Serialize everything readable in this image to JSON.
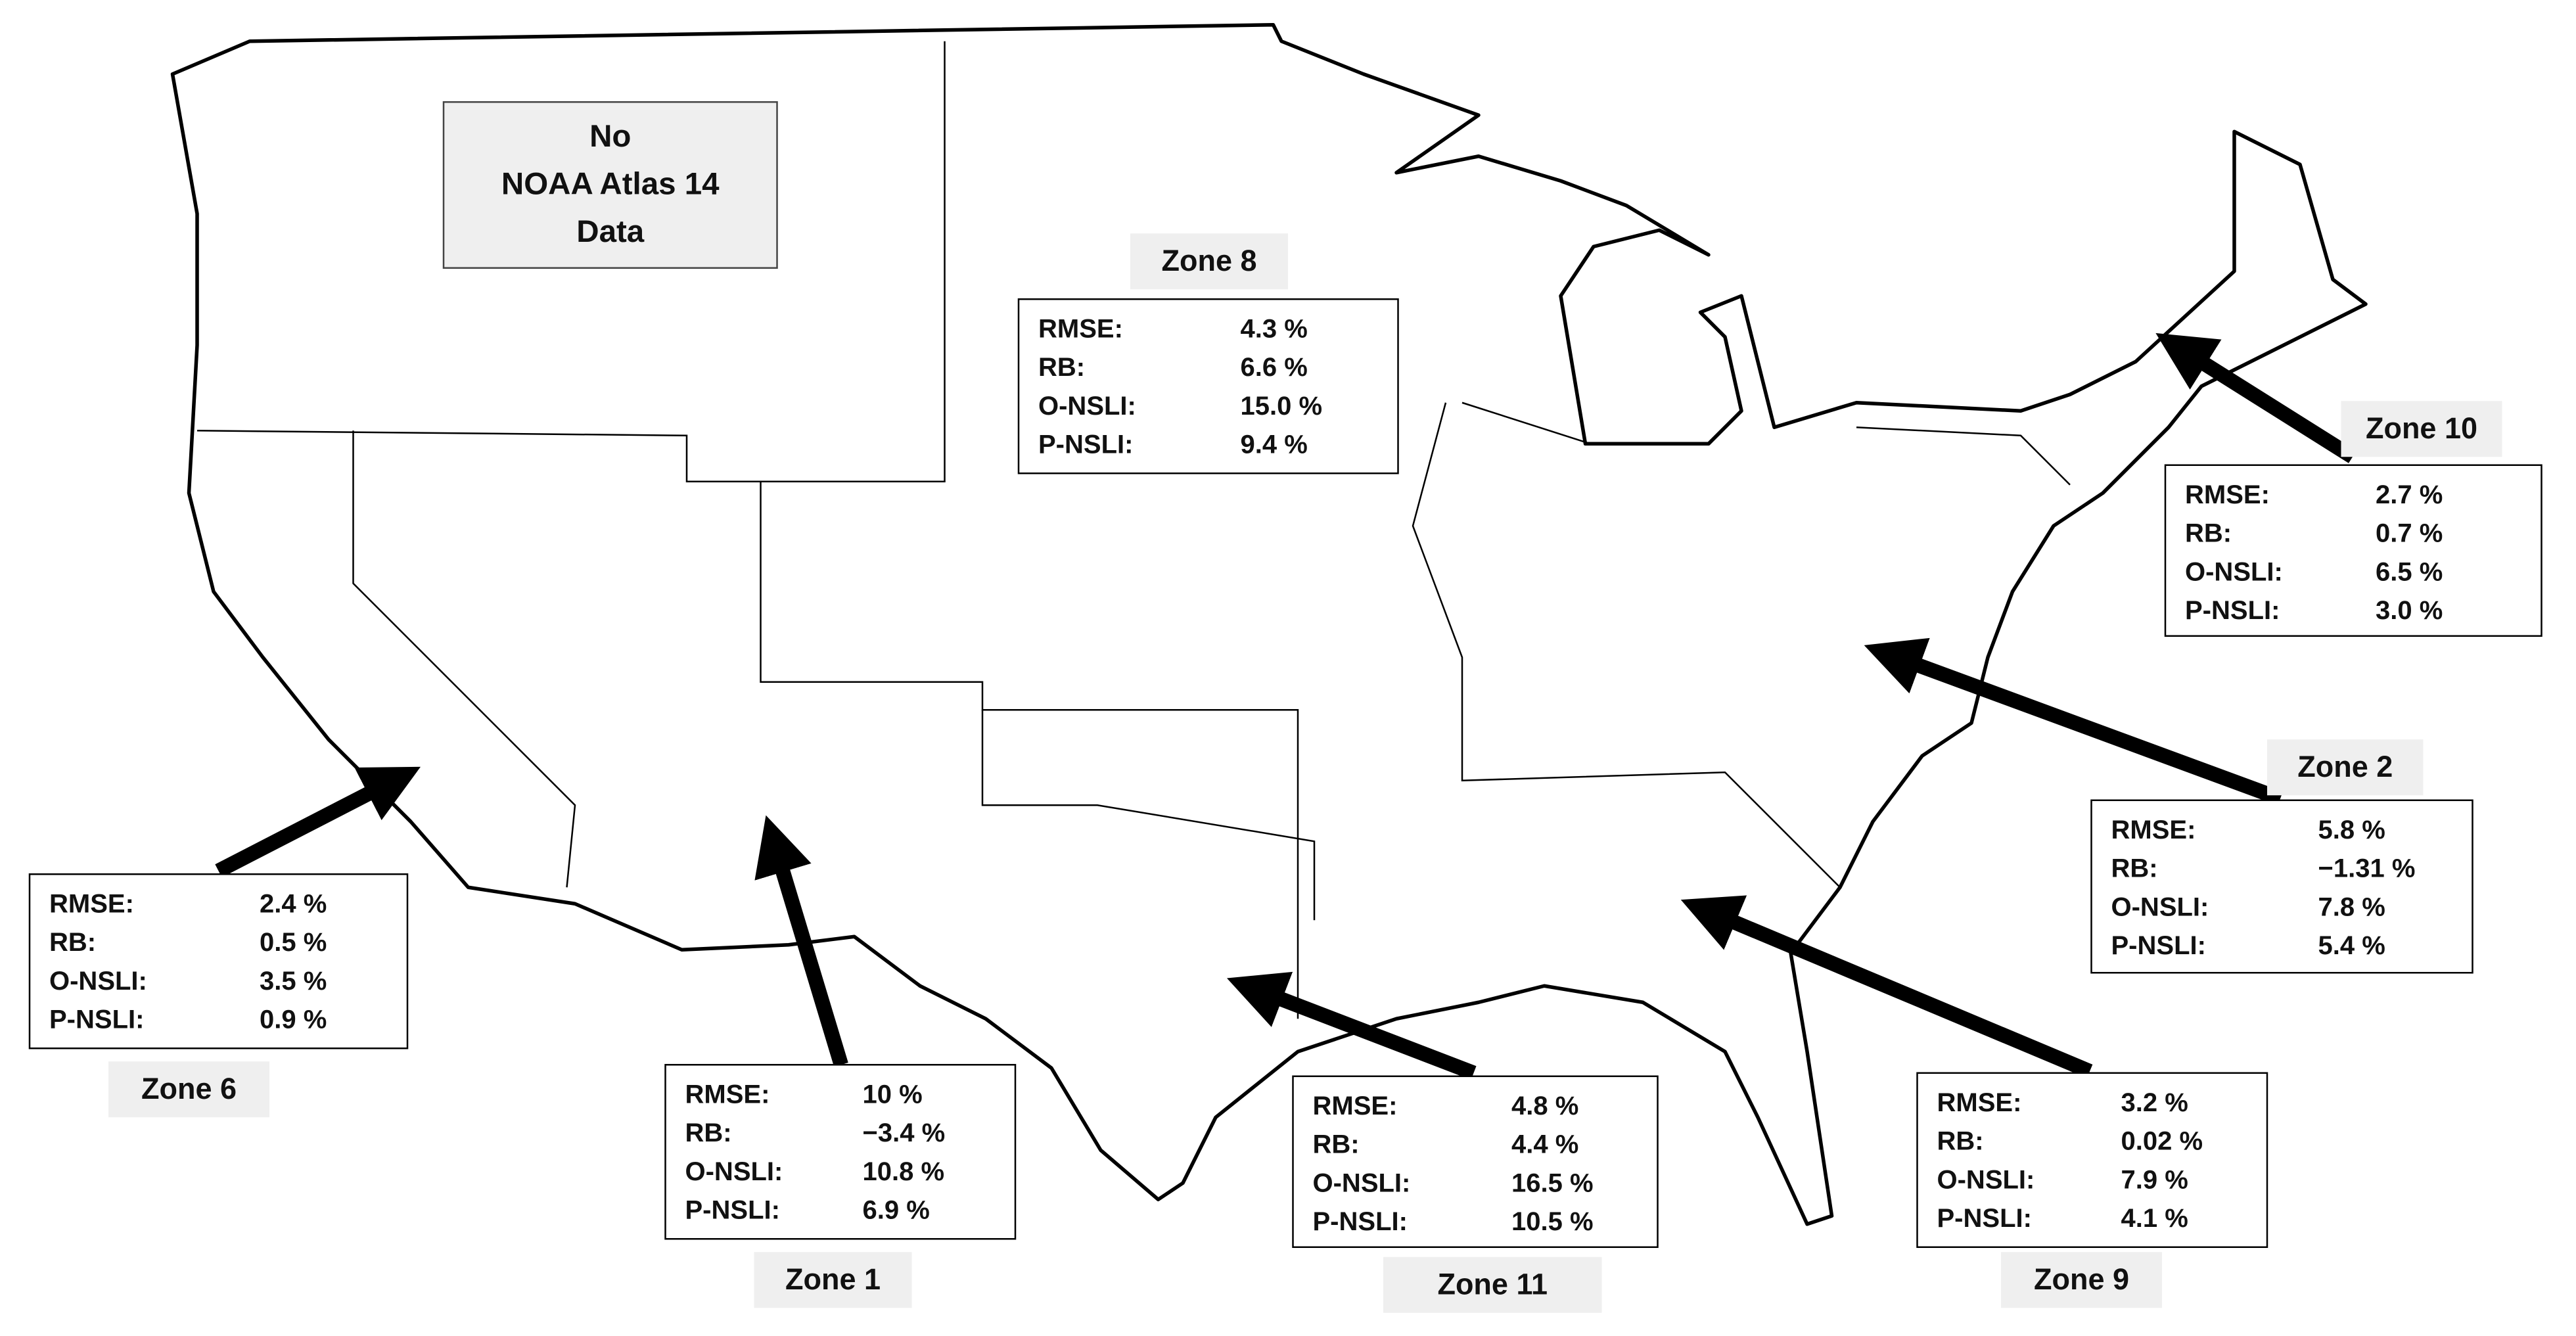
{
  "no_data_label": [
    "No",
    "NOAA Atlas 14",
    "Data"
  ],
  "zones": [
    {
      "name": "Zone 8",
      "rows": [
        {
          "label": "RMSE:",
          "value": "4.3 %"
        },
        {
          "label": "RB:",
          "value": "6.6 %"
        },
        {
          "label": "O-NSLI:",
          "value": "15.0 %"
        },
        {
          "label": "P-NSLI:",
          "value": "9.4 %"
        }
      ]
    },
    {
      "name": "Zone 10",
      "rows": [
        {
          "label": "RMSE:",
          "value": "2.7 %"
        },
        {
          "label": "RB:",
          "value": "0.7 %"
        },
        {
          "label": "O-NSLI:",
          "value": "6.5 %"
        },
        {
          "label": "P-NSLI:",
          "value": "3.0 %"
        }
      ]
    },
    {
      "name": "Zone 2",
      "rows": [
        {
          "label": "RMSE:",
          "value": "5.8 %"
        },
        {
          "label": "RB:",
          "value": "−1.31 %"
        },
        {
          "label": "O-NSLI:",
          "value": "7.8 %"
        },
        {
          "label": "P-NSLI:",
          "value": "5.4 %"
        }
      ]
    },
    {
      "name": "Zone 6",
      "rows": [
        {
          "label": "RMSE:",
          "value": "2.4 %"
        },
        {
          "label": "RB:",
          "value": "0.5 %"
        },
        {
          "label": "O-NSLI:",
          "value": "3.5 %"
        },
        {
          "label": "P-NSLI:",
          "value": "0.9 %"
        }
      ]
    },
    {
      "name": "Zone 1",
      "rows": [
        {
          "label": "RMSE:",
          "value": "10 %"
        },
        {
          "label": "RB:",
          "value": "−3.4 %"
        },
        {
          "label": "O-NSLI:",
          "value": "10.8 %"
        },
        {
          "label": "P-NSLI:",
          "value": "6.9 %"
        }
      ]
    },
    {
      "name": "Zone 11",
      "rows": [
        {
          "label": "RMSE:",
          "value": "4.8 %"
        },
        {
          "label": "RB:",
          "value": "4.4 %"
        },
        {
          "label": "O-NSLI:",
          "value": "16.5 %"
        },
        {
          "label": "P-NSLI:",
          "value": "10.5 %"
        }
      ]
    },
    {
      "name": "Zone 9",
      "rows": [
        {
          "label": "RMSE:",
          "value": "3.2 %"
        },
        {
          "label": "RB:",
          "value": "0.02 %"
        },
        {
          "label": "O-NSLI:",
          "value": "7.9 %"
        },
        {
          "label": "P-NSLI:",
          "value": "4.1 %"
        }
      ]
    }
  ]
}
